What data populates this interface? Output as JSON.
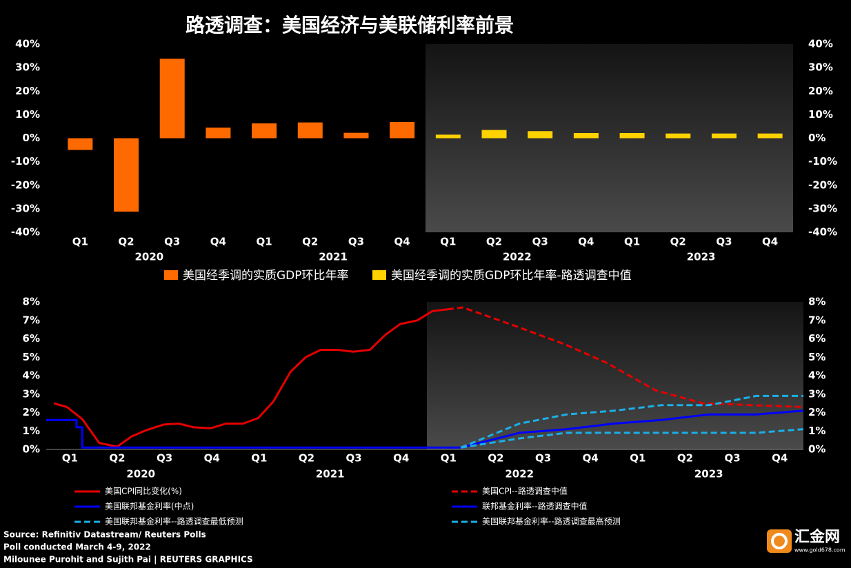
{
  "title": "路透调查：美国经济与美联储利率前景",
  "chart_data": [
    {
      "type": "bar",
      "categories": [
        "Q1",
        "Q2",
        "Q3",
        "Q4",
        "Q1",
        "Q2",
        "Q3",
        "Q4",
        "Q1",
        "Q2",
        "Q3",
        "Q4",
        "Q1",
        "Q2",
        "Q3",
        "Q4"
      ],
      "category_groups": [
        "2020",
        "2021",
        "2022",
        "2023"
      ],
      "series": [
        {
          "name": "美国经季调的实质GDP环比年率",
          "color": "#ff6a00",
          "values": [
            -5,
            -31.2,
            33.8,
            4.5,
            6.3,
            6.7,
            2.3,
            6.9,
            null,
            null,
            null,
            null,
            null,
            null,
            null,
            null
          ]
        },
        {
          "name": "美国经季调的实质GDP环比年率-路透调查中值",
          "color": "#ffd200",
          "values": [
            null,
            null,
            null,
            null,
            null,
            null,
            null,
            null,
            1.5,
            3.5,
            3,
            2.2,
            2.2,
            2,
            2,
            2
          ]
        }
      ],
      "ylim": [
        -40,
        40
      ],
      "yticks": [
        {
          "value": 40,
          "label": "40%"
        },
        {
          "value": 30,
          "label": "30%"
        },
        {
          "value": 20,
          "label": "20%"
        },
        {
          "value": 10,
          "label": "10%"
        },
        {
          "value": 0,
          "label": "0%"
        },
        {
          "value": -10,
          "label": "-10%"
        },
        {
          "value": -20,
          "label": "-20%"
        },
        {
          "value": -30,
          "label": "-30%"
        },
        {
          "value": -40,
          "label": "-40%"
        }
      ],
      "y2lim": [
        -40,
        40
      ],
      "y2ticks": [
        {
          "value": 40,
          "label": "40%"
        },
        {
          "value": 30,
          "label": "30%"
        },
        {
          "value": 20,
          "label": "20%"
        },
        {
          "value": 10,
          "label": "10%"
        },
        {
          "value": 0,
          "label": "0%"
        },
        {
          "value": -10,
          "label": "-10%"
        },
        {
          "value": -20,
          "label": "-20%"
        },
        {
          "value": -30,
          "label": "-30%"
        },
        {
          "value": -40,
          "label": "-40%"
        }
      ]
    },
    {
      "type": "line",
      "xlim": [
        2020,
        2024
      ],
      "xticks": [
        {
          "value": 2020.125,
          "label": "Q1"
        },
        {
          "value": 2020.375,
          "label": "Q2"
        },
        {
          "value": 2020.625,
          "label": "Q3"
        },
        {
          "value": 2020.875,
          "label": "Q4"
        },
        {
          "value": 2021.125,
          "label": "Q1"
        },
        {
          "value": 2021.375,
          "label": "Q2"
        },
        {
          "value": 2021.625,
          "label": "Q3"
        },
        {
          "value": 2021.875,
          "label": "Q4"
        },
        {
          "value": 2022.125,
          "label": "Q1"
        },
        {
          "value": 2022.375,
          "label": "Q2"
        },
        {
          "value": 2022.625,
          "label": "Q3"
        },
        {
          "value": 2022.875,
          "label": "Q4"
        },
        {
          "value": 2023.125,
          "label": "Q1"
        },
        {
          "value": 2023.375,
          "label": "Q2"
        },
        {
          "value": 2023.625,
          "label": "Q3"
        },
        {
          "value": 2023.875,
          "label": "Q4"
        }
      ],
      "xticks_year": [
        {
          "value": 2020.5,
          "label": "2020"
        },
        {
          "value": 2021.5,
          "label": "2021"
        },
        {
          "value": 2022.5,
          "label": "2022"
        },
        {
          "value": 2023.5,
          "label": "2023"
        }
      ],
      "series": [
        {
          "name": "美国CPI同比变化(%)",
          "color": "#e60000",
          "dashed": false,
          "x": [
            2020.04,
            2020.11,
            2020.19,
            2020.28,
            2020.375,
            2020.45,
            2020.53,
            2020.62,
            2020.7,
            2020.78,
            2020.87,
            2020.95,
            2021.04,
            2021.12,
            2021.2,
            2021.29,
            2021.37,
            2021.45,
            2021.54,
            2021.62,
            2021.71,
            2021.79,
            2021.87,
            2021.96,
            2022.04,
            2022.12
          ],
          "values": [
            2.5,
            2.3,
            1.65,
            0.35,
            0.15,
            0.7,
            1.05,
            1.35,
            1.4,
            1.2,
            1.15,
            1.4,
            1.4,
            1.7,
            2.6,
            4.2,
            5,
            5.4,
            5.4,
            5.3,
            5.4,
            6.2,
            6.8,
            7,
            7.5,
            7.6
          ]
        },
        {
          "name": "美国CPI--路透调查中值",
          "color": "#e60000",
          "dashed": true,
          "x": [
            2022.12,
            2022.2,
            2022.45,
            2022.74,
            2022.96,
            2023.22,
            2023.47,
            2023.73,
            2024
          ],
          "values": [
            7.6,
            7.7,
            6.8,
            5.7,
            4.7,
            3.2,
            2.5,
            2.4,
            2.3
          ]
        },
        {
          "name": "美国联邦基金利率(中点)",
          "color": "#0000ff",
          "dashed": false,
          "x": [
            2020,
            2020.16,
            2020.16,
            2020.19,
            2020.19,
            2022.19
          ],
          "values": [
            1.6,
            1.6,
            1.2,
            1.2,
            0.1,
            0.1
          ]
        },
        {
          "name": "联邦基金利率--路透调查中值",
          "color": "#0000ff",
          "dashed": false,
          "x": [
            2022.19,
            2022.5,
            2022.75,
            2023,
            2023.25,
            2023.5,
            2023.75,
            2024
          ],
          "values": [
            0.1,
            0.9,
            1.1,
            1.4,
            1.6,
            1.9,
            1.9,
            2.1
          ]
        },
        {
          "name": "美国联邦基金利率--路透调查最低预测",
          "color": "#1ab0e8",
          "dashed": true,
          "x": [
            2022.19,
            2022.5,
            2022.75,
            2023,
            2023.5,
            2023.75,
            2024
          ],
          "values": [
            0.1,
            0.6,
            0.9,
            0.9,
            0.9,
            0.9,
            1.1
          ]
        },
        {
          "name": "美国联邦基金利率--路透调查最高预测",
          "color": "#1ab0e8",
          "dashed": true,
          "x": [
            2022.19,
            2022.5,
            2022.75,
            2023,
            2023.25,
            2023.5,
            2023.75,
            2024
          ],
          "values": [
            0.1,
            1.4,
            1.9,
            2.1,
            2.4,
            2.4,
            2.9,
            2.9
          ]
        }
      ],
      "ylim": [
        0,
        8
      ],
      "yticks": [
        {
          "value": 8,
          "label": "8%"
        },
        {
          "value": 7,
          "label": "7%"
        },
        {
          "value": 6,
          "label": "6%"
        },
        {
          "value": 5,
          "label": "5%"
        },
        {
          "value": 4,
          "label": "4%"
        },
        {
          "value": 3,
          "label": "3%"
        },
        {
          "value": 2,
          "label": "2%"
        },
        {
          "value": 1,
          "label": "1%"
        },
        {
          "value": 0,
          "label": "0%"
        }
      ],
      "y2lim": [
        0,
        8
      ],
      "y2ticks": [
        {
          "value": 8,
          "label": "8%"
        },
        {
          "value": 7,
          "label": "7%"
        },
        {
          "value": 6,
          "label": "6%"
        },
        {
          "value": 5,
          "label": "5%"
        },
        {
          "value": 4,
          "label": "4%"
        },
        {
          "value": 3,
          "label": "3%"
        },
        {
          "value": 2,
          "label": "2%"
        },
        {
          "value": 1,
          "label": "1%"
        },
        {
          "value": 0,
          "label": "0%"
        }
      ]
    }
  ],
  "notes": [
    "Source: Refinitiv Datastream/  Reuters Polls",
    "Poll conducted March 4-9, 2022",
    "Milounee Purohit and Sujith Pai | REUTERS GRAPHICS"
  ],
  "logo": {
    "name": "汇金网",
    "url": "www.gold678.com"
  }
}
